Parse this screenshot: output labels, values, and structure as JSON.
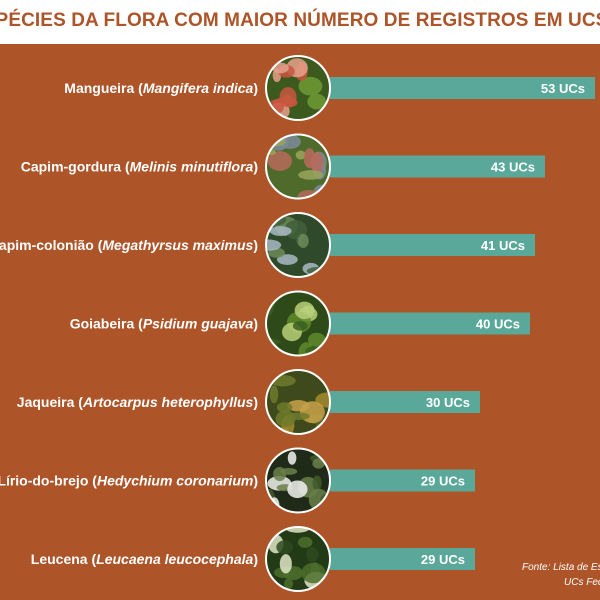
{
  "title": "ESPÉCIES DA FLORA COM MAIOR NÚMERO DE REGISTROS EM UCS FEDERAIS",
  "source": {
    "line1": "Fonte: Lista de Es",
    "line2": "UCs Fed"
  },
  "colors": {
    "background": "#ad5428",
    "bar": "#5aa89a",
    "title_bg": "#ffffff",
    "title_text": "#ad5428"
  },
  "chart_data": {
    "type": "bar",
    "orientation": "horizontal",
    "title": "ESPÉCIES DA FLORA COM MAIOR NÚMERO DE REGISTROS EM UCS FEDERAIS",
    "value_unit": "UCs",
    "categories": [
      {
        "common": "Mangueira",
        "scientific": "Mangifera indica",
        "value": 53,
        "value_label": "53 UCs",
        "photo": "mango-fruit-photo"
      },
      {
        "common": "Capim-gordura",
        "scientific": "Melinis minutiflora",
        "value": 43,
        "value_label": "43 UCs",
        "photo": "grass-field-photo"
      },
      {
        "common": "Capim-colonião",
        "scientific": "Megathyrsus maximus",
        "value": 41,
        "value_label": "41 UCs",
        "photo": "tall-grass-photo"
      },
      {
        "common": "Goiabeira",
        "scientific": "Psidium guajava",
        "value": 40,
        "value_label": "40 UCs",
        "photo": "guava-fruit-photo"
      },
      {
        "common": "Jaqueira",
        "scientific": "Artocarpus heterophyllus",
        "value": 30,
        "value_label": "30 UCs",
        "photo": "jackfruit-photo"
      },
      {
        "common": "Lírio-do-brejo",
        "scientific": "Hedychium coronarium",
        "value": 29,
        "value_label": "29 UCs",
        "photo": "white-flower-photo"
      },
      {
        "common": "Leucena",
        "scientific": "Leucaena leucocephala",
        "value": 29,
        "value_label": "29 UCs",
        "photo": "leucaena-leaves-photo"
      }
    ]
  }
}
